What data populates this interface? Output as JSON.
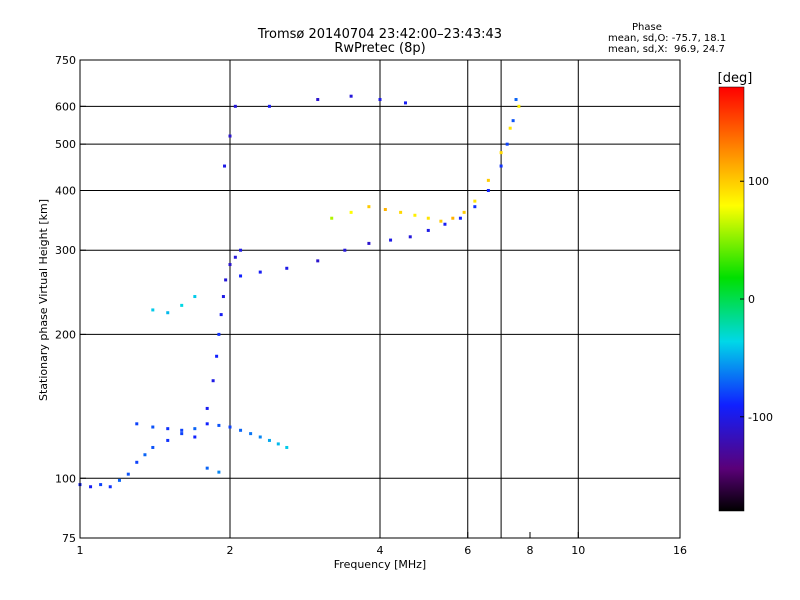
{
  "header": {
    "title": "Tromsø 20140704 23:42:00–23:43:43",
    "subtitle": "RwPretec (8p)"
  },
  "phase_stats": {
    "heading": "Phase",
    "line_o": "mean, sd,O: -75.7, 18.1",
    "line_x": "mean, sd,X:  96.9, 24.7"
  },
  "colorbar": {
    "unit": "[deg]",
    "ticks": [
      "100",
      "0",
      "-100"
    ],
    "tick_values": [
      100,
      0,
      -100
    ],
    "range": [
      -180,
      180
    ]
  },
  "chart_data": {
    "type": "scatter",
    "title": "Tromsø 20140704 23:42:00–23:43:43",
    "subtitle": "RwPretec (8p)",
    "xlabel": "Frequency [MHz]",
    "ylabel": "Stationary phase Virtual Height [km]",
    "xscale": "log",
    "yscale": "log",
    "xlim": [
      1,
      16
    ],
    "ylim": [
      75,
      750
    ],
    "x_ticks": [
      1,
      2,
      4,
      6,
      8,
      10,
      16
    ],
    "x_tick_labels": [
      "1",
      "2",
      "4",
      "6",
      "8",
      "10",
      "16"
    ],
    "y_ticks": [
      75,
      100,
      200,
      300,
      400,
      500,
      600,
      750
    ],
    "y_tick_labels": [
      "75",
      "100",
      "200",
      "300",
      "400",
      "500",
      "600",
      "750"
    ],
    "grid_x": [
      2,
      4,
      6,
      7,
      10
    ],
    "grid_y": [
      100,
      200,
      300,
      400,
      500,
      600
    ],
    "color_scale": "phase in degrees, -180 (black) to 180 (red)",
    "series": [
      {
        "points": [
          [
            1.0,
            97,
            -90
          ],
          [
            1.05,
            96,
            -95
          ],
          [
            1.1,
            97,
            -80
          ],
          [
            1.15,
            96,
            -85
          ],
          [
            1.2,
            99,
            -70
          ],
          [
            1.25,
            102,
            -75
          ],
          [
            1.3,
            108,
            -80
          ],
          [
            1.35,
            112,
            -70
          ],
          [
            1.4,
            116,
            -75
          ],
          [
            1.5,
            120,
            -85
          ],
          [
            1.6,
            124,
            -80
          ],
          [
            1.7,
            122,
            -90
          ],
          [
            1.8,
            105,
            -70
          ],
          [
            1.9,
            103,
            -60
          ]
        ]
      },
      {
        "points": [
          [
            1.3,
            130,
            -80
          ],
          [
            1.4,
            128,
            -75
          ],
          [
            1.5,
            127,
            -85
          ],
          [
            1.6,
            126,
            -80
          ],
          [
            1.7,
            127,
            -70
          ],
          [
            1.8,
            130,
            -90
          ],
          [
            1.9,
            129,
            -75
          ],
          [
            2.0,
            128,
            -80
          ],
          [
            2.1,
            126,
            -70
          ],
          [
            2.2,
            124,
            -65
          ],
          [
            2.3,
            122,
            -60
          ],
          [
            2.4,
            120,
            -50
          ],
          [
            2.5,
            118,
            -45
          ],
          [
            2.6,
            116,
            -40
          ]
        ]
      },
      {
        "points": [
          [
            1.8,
            140,
            -95
          ],
          [
            1.85,
            160,
            -100
          ],
          [
            1.88,
            180,
            -90
          ],
          [
            1.9,
            200,
            -85
          ],
          [
            1.92,
            220,
            -95
          ],
          [
            1.94,
            240,
            -100
          ],
          [
            1.96,
            260,
            -105
          ],
          [
            2.0,
            280,
            -110
          ],
          [
            2.05,
            290,
            -105
          ],
          [
            2.1,
            300,
            -100
          ]
        ]
      },
      {
        "points": [
          [
            2.1,
            265,
            -90
          ],
          [
            2.3,
            270,
            -95
          ],
          [
            2.6,
            275,
            -100
          ],
          [
            3.0,
            285,
            -110
          ],
          [
            3.4,
            300,
            -105
          ],
          [
            3.8,
            310,
            -110
          ],
          [
            4.2,
            315,
            -100
          ],
          [
            4.6,
            320,
            -105
          ],
          [
            5.0,
            330,
            -100
          ],
          [
            5.4,
            340,
            -95
          ],
          [
            5.8,
            350,
            -90
          ],
          [
            6.2,
            370,
            -85
          ],
          [
            6.6,
            400,
            -90
          ],
          [
            7.0,
            450,
            -85
          ],
          [
            7.2,
            500,
            -80
          ],
          [
            7.4,
            560,
            -75
          ],
          [
            7.5,
            620,
            -70
          ]
        ]
      },
      {
        "points": [
          [
            3.2,
            350,
            60
          ],
          [
            3.5,
            360,
            80
          ],
          [
            3.8,
            370,
            100
          ],
          [
            4.1,
            365,
            110
          ],
          [
            4.4,
            360,
            95
          ],
          [
            4.7,
            355,
            85
          ],
          [
            5.0,
            350,
            90
          ],
          [
            5.3,
            345,
            100
          ],
          [
            5.6,
            350,
            110
          ],
          [
            5.9,
            360,
            100
          ],
          [
            6.2,
            380,
            90
          ],
          [
            6.6,
            420,
            100
          ],
          [
            7.0,
            480,
            95
          ],
          [
            7.3,
            540,
            90
          ],
          [
            7.6,
            600,
            85
          ]
        ]
      },
      {
        "points": [
          [
            1.95,
            450,
            -100
          ],
          [
            2.0,
            520,
            -110
          ],
          [
            2.05,
            600,
            -105
          ],
          [
            2.4,
            600,
            -95
          ],
          [
            3.0,
            620,
            -110
          ],
          [
            3.5,
            630,
            -105
          ],
          [
            4.0,
            620,
            -100
          ],
          [
            4.5,
            610,
            -95
          ]
        ]
      },
      {
        "points": [
          [
            1.4,
            225,
            -40
          ],
          [
            1.5,
            222,
            -45
          ],
          [
            1.6,
            230,
            -35
          ],
          [
            1.7,
            240,
            -40
          ]
        ]
      }
    ]
  }
}
